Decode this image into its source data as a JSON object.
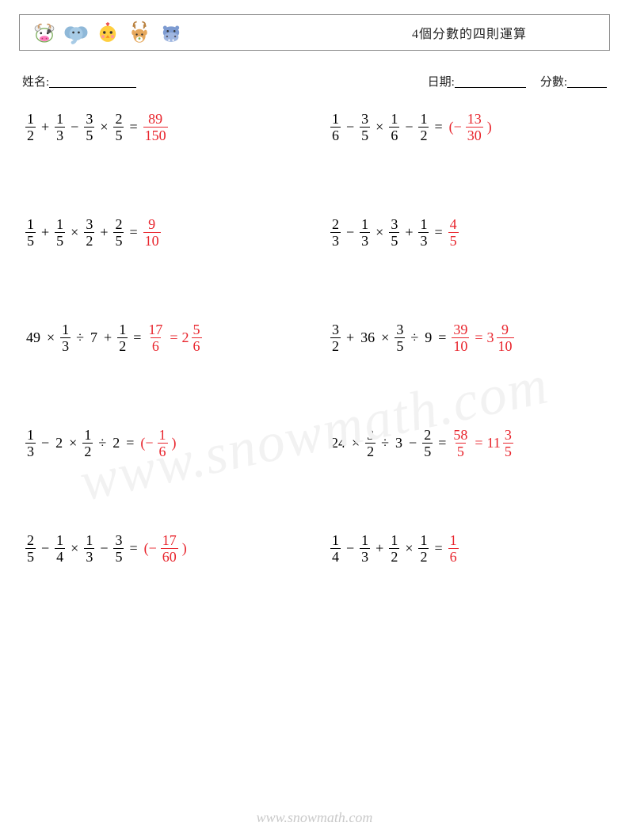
{
  "colors": {
    "answer": "#e8242c",
    "text": "#000000",
    "border": "#888888",
    "background": "#ffffff",
    "watermark": "#f2f2f2",
    "footer": "#c9c9c9"
  },
  "typography": {
    "body_fontsize_pt": 14,
    "title_fontsize_pt": 12,
    "footer_fontsize_pt": 14
  },
  "header": {
    "title": "4個分數的四則運算",
    "icons": [
      "cow-icon",
      "elephant-icon",
      "chick-icon",
      "deer-icon",
      "hippo-icon"
    ]
  },
  "meta": {
    "name_label": "姓名:",
    "date_label": "日期:",
    "score_label": "分數:"
  },
  "footer_text": "www.snowmath.com",
  "watermark_text": "www.snowmath.com",
  "problems": [
    {
      "tokens": [
        {
          "t": "frac",
          "n": "1",
          "d": "2"
        },
        {
          "t": "op",
          "v": "+"
        },
        {
          "t": "frac",
          "n": "1",
          "d": "3"
        },
        {
          "t": "op",
          "v": "−"
        },
        {
          "t": "frac",
          "n": "3",
          "d": "5"
        },
        {
          "t": "op",
          "v": "×"
        },
        {
          "t": "frac",
          "n": "2",
          "d": "5"
        },
        {
          "t": "op",
          "v": "="
        },
        {
          "t": "frac",
          "n": "89",
          "d": "150",
          "red": true
        }
      ]
    },
    {
      "tokens": [
        {
          "t": "frac",
          "n": "1",
          "d": "6"
        },
        {
          "t": "op",
          "v": "−"
        },
        {
          "t": "frac",
          "n": "3",
          "d": "5"
        },
        {
          "t": "op",
          "v": "×"
        },
        {
          "t": "frac",
          "n": "1",
          "d": "6"
        },
        {
          "t": "op",
          "v": "−"
        },
        {
          "t": "frac",
          "n": "1",
          "d": "2"
        },
        {
          "t": "op",
          "v": "="
        },
        {
          "t": "text",
          "v": "(−",
          "red": true
        },
        {
          "t": "frac",
          "n": "13",
          "d": "30",
          "red": true
        },
        {
          "t": "text",
          "v": ")",
          "red": true
        }
      ]
    },
    {
      "tokens": [
        {
          "t": "frac",
          "n": "1",
          "d": "5"
        },
        {
          "t": "op",
          "v": "+"
        },
        {
          "t": "frac",
          "n": "1",
          "d": "5"
        },
        {
          "t": "op",
          "v": "×"
        },
        {
          "t": "frac",
          "n": "3",
          "d": "2"
        },
        {
          "t": "op",
          "v": "+"
        },
        {
          "t": "frac",
          "n": "2",
          "d": "5"
        },
        {
          "t": "op",
          "v": "="
        },
        {
          "t": "frac",
          "n": "9",
          "d": "10",
          "red": true
        }
      ]
    },
    {
      "tokens": [
        {
          "t": "frac",
          "n": "2",
          "d": "3"
        },
        {
          "t": "op",
          "v": "−"
        },
        {
          "t": "frac",
          "n": "1",
          "d": "3"
        },
        {
          "t": "op",
          "v": "×"
        },
        {
          "t": "frac",
          "n": "3",
          "d": "5"
        },
        {
          "t": "op",
          "v": "+"
        },
        {
          "t": "frac",
          "n": "1",
          "d": "3"
        },
        {
          "t": "op",
          "v": "="
        },
        {
          "t": "frac",
          "n": "4",
          "d": "5",
          "red": true
        }
      ]
    },
    {
      "tokens": [
        {
          "t": "text",
          "v": "49"
        },
        {
          "t": "op",
          "v": "×"
        },
        {
          "t": "frac",
          "n": "1",
          "d": "3"
        },
        {
          "t": "op",
          "v": "÷"
        },
        {
          "t": "text",
          "v": "7"
        },
        {
          "t": "op",
          "v": "+"
        },
        {
          "t": "frac",
          "n": "1",
          "d": "2"
        },
        {
          "t": "op",
          "v": "="
        },
        {
          "t": "frac",
          "n": "17",
          "d": "6",
          "red": true
        },
        {
          "t": "op",
          "v": "=",
          "red": true
        },
        {
          "t": "mixed",
          "w": "2",
          "n": "5",
          "d": "6",
          "red": true
        }
      ]
    },
    {
      "tokens": [
        {
          "t": "frac",
          "n": "3",
          "d": "2"
        },
        {
          "t": "op",
          "v": "+"
        },
        {
          "t": "text",
          "v": "36"
        },
        {
          "t": "op",
          "v": "×"
        },
        {
          "t": "frac",
          "n": "3",
          "d": "5"
        },
        {
          "t": "op",
          "v": "÷"
        },
        {
          "t": "text",
          "v": "9"
        },
        {
          "t": "op",
          "v": "="
        },
        {
          "t": "frac",
          "n": "39",
          "d": "10",
          "red": true
        },
        {
          "t": "op",
          "v": "=",
          "red": true
        },
        {
          "t": "mixed",
          "w": "3",
          "n": "9",
          "d": "10",
          "red": true
        }
      ]
    },
    {
      "tokens": [
        {
          "t": "frac",
          "n": "1",
          "d": "3"
        },
        {
          "t": "op",
          "v": "−"
        },
        {
          "t": "text",
          "v": "2"
        },
        {
          "t": "op",
          "v": "×"
        },
        {
          "t": "frac",
          "n": "1",
          "d": "2"
        },
        {
          "t": "op",
          "v": "÷"
        },
        {
          "t": "text",
          "v": "2"
        },
        {
          "t": "op",
          "v": "="
        },
        {
          "t": "text",
          "v": "(−",
          "red": true
        },
        {
          "t": "frac",
          "n": "1",
          "d": "6",
          "red": true
        },
        {
          "t": "text",
          "v": ")",
          "red": true
        }
      ]
    },
    {
      "tokens": [
        {
          "t": "text",
          "v": "24"
        },
        {
          "t": "op",
          "v": "×"
        },
        {
          "t": "frac",
          "n": "3",
          "d": "2"
        },
        {
          "t": "op",
          "v": "÷"
        },
        {
          "t": "text",
          "v": "3"
        },
        {
          "t": "op",
          "v": "−"
        },
        {
          "t": "frac",
          "n": "2",
          "d": "5"
        },
        {
          "t": "op",
          "v": "="
        },
        {
          "t": "frac",
          "n": "58",
          "d": "5",
          "red": true
        },
        {
          "t": "op",
          "v": "=",
          "red": true
        },
        {
          "t": "mixed",
          "w": "11",
          "n": "3",
          "d": "5",
          "red": true
        }
      ]
    },
    {
      "tokens": [
        {
          "t": "frac",
          "n": "2",
          "d": "5"
        },
        {
          "t": "op",
          "v": "−"
        },
        {
          "t": "frac",
          "n": "1",
          "d": "4"
        },
        {
          "t": "op",
          "v": "×"
        },
        {
          "t": "frac",
          "n": "1",
          "d": "3"
        },
        {
          "t": "op",
          "v": "−"
        },
        {
          "t": "frac",
          "n": "3",
          "d": "5"
        },
        {
          "t": "op",
          "v": "="
        },
        {
          "t": "text",
          "v": "(−",
          "red": true
        },
        {
          "t": "frac",
          "n": "17",
          "d": "60",
          "red": true
        },
        {
          "t": "text",
          "v": ")",
          "red": true
        }
      ]
    },
    {
      "tokens": [
        {
          "t": "frac",
          "n": "1",
          "d": "4"
        },
        {
          "t": "op",
          "v": "−"
        },
        {
          "t": "frac",
          "n": "1",
          "d": "3"
        },
        {
          "t": "op",
          "v": "+"
        },
        {
          "t": "frac",
          "n": "1",
          "d": "2"
        },
        {
          "t": "op",
          "v": "×"
        },
        {
          "t": "frac",
          "n": "1",
          "d": "2"
        },
        {
          "t": "op",
          "v": "="
        },
        {
          "t": "frac",
          "n": "1",
          "d": "6",
          "red": true
        }
      ]
    }
  ]
}
